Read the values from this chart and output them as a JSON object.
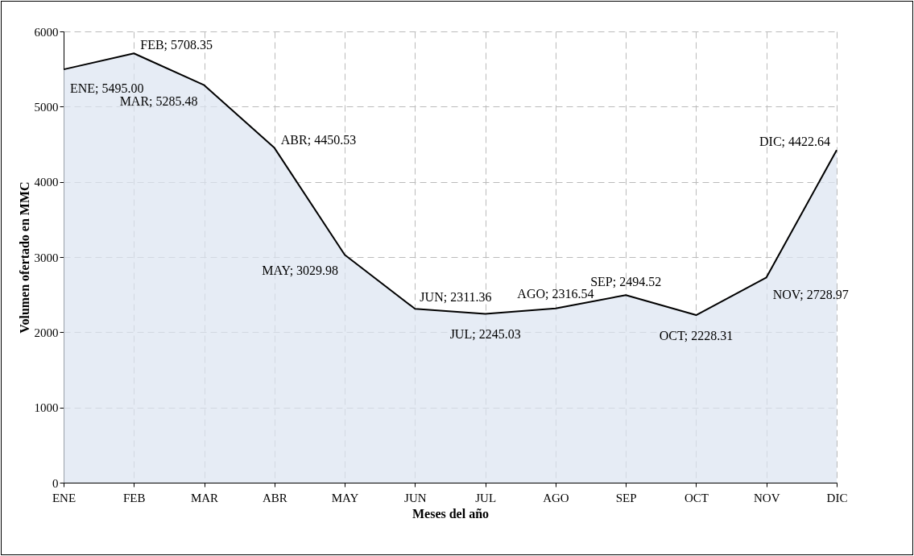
{
  "chart_data": {
    "type": "area",
    "xlabel": "Meses del año",
    "ylabel": "Volumen ofertado en MMC",
    "categories": [
      "ENE",
      "FEB",
      "MAR",
      "ABR",
      "MAY",
      "JUN",
      "JUL",
      "AGO",
      "SEP",
      "OCT",
      "NOV",
      "DIC"
    ],
    "series": [
      {
        "color": "#dbe4f1",
        "values": [
          5495.0,
          5708.35,
          5285.48,
          4450.53,
          3029.98,
          2311.36,
          2245.03,
          2316.54,
          2494.52,
          2228.31,
          2728.97,
          4422.64
        ],
        "value_labels": [
          "ENE; 5495.00",
          "FEB; 5708.35",
          "MAR; 5285.48",
          "ABR; 4450.53",
          "MAY; 3029.98",
          "JUN; 2311.36",
          "JUL; 2245.03",
          "AGO; 2316.54",
          "SEP; 2494.52",
          "OCT; 2228.31",
          "NOV; 2728.97",
          "DIC; 4422.64"
        ]
      }
    ],
    "ylim": [
      0,
      6000
    ],
    "yticks": [
      0,
      1000,
      2000,
      3000,
      4000,
      5000,
      6000
    ],
    "grid": true
  }
}
